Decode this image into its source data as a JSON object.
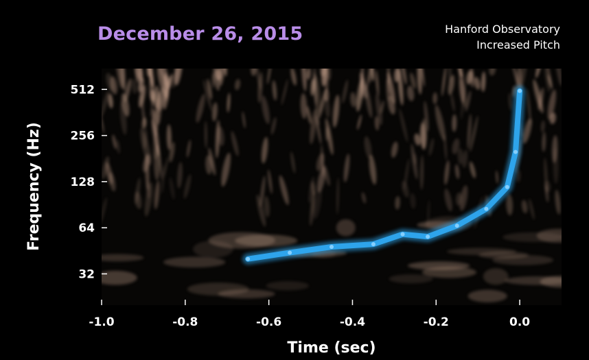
{
  "header": {
    "title": "December 26, 2015",
    "subtitle_line1": "Hanford Observatory",
    "subtitle_line2": "Increased Pitch"
  },
  "colors": {
    "background": "#000000",
    "title": "#b98de8",
    "signal": "#2fa8f0",
    "noise": "#c9a48e",
    "text": "#ffffff"
  },
  "chart_data": {
    "type": "heatmap",
    "xlabel": "Time (sec)",
    "ylabel": "Frequency (Hz)",
    "xlim": [
      -1.0,
      0.1
    ],
    "ylim": [
      20,
      700
    ],
    "yscale": "log2",
    "x_ticks": [
      -1.0,
      -0.8,
      -0.6,
      -0.4,
      -0.2,
      0.0
    ],
    "x_tick_labels": [
      "-1.0",
      "-0.8",
      "-0.6",
      "-0.4",
      "-0.2",
      "0.0"
    ],
    "y_ticks": [
      32,
      64,
      128,
      256,
      512
    ],
    "y_tick_labels": [
      "32",
      "64",
      "128",
      "256",
      "512"
    ],
    "signal_track": [
      {
        "x": -0.65,
        "y": 40
      },
      {
        "x": -0.55,
        "y": 44
      },
      {
        "x": -0.45,
        "y": 48
      },
      {
        "x": -0.35,
        "y": 50
      },
      {
        "x": -0.28,
        "y": 58
      },
      {
        "x": -0.22,
        "y": 56
      },
      {
        "x": -0.15,
        "y": 66
      },
      {
        "x": -0.08,
        "y": 85
      },
      {
        "x": -0.03,
        "y": 118
      },
      {
        "x": -0.01,
        "y": 200
      },
      {
        "x": 0.0,
        "y": 500
      }
    ],
    "grid": false,
    "legend": "none"
  }
}
